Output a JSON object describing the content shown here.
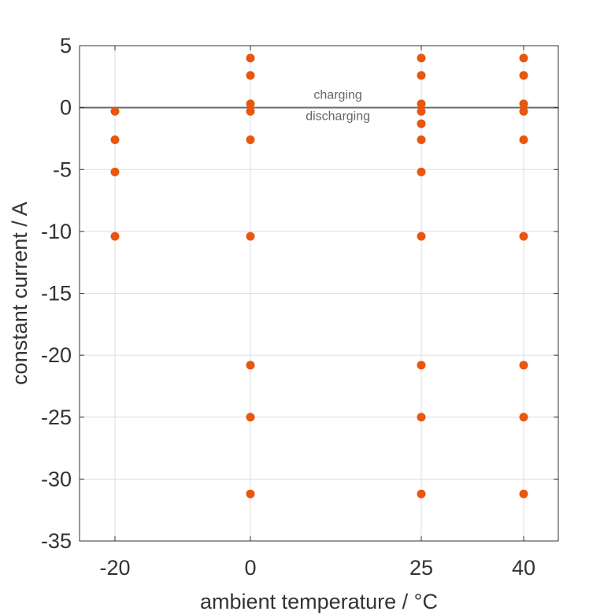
{
  "chart_data": {
    "type": "scatter",
    "xlabel": "ambient temperature / °C",
    "ylabel": "constant current / A",
    "xticks": [
      -20,
      0,
      25,
      40
    ],
    "yticks": [
      5,
      0,
      -5,
      -10,
      -15,
      -20,
      -25,
      -30,
      -35
    ],
    "xlim": [
      -25,
      44
    ],
    "ylim": [
      -35,
      5
    ],
    "grid": true,
    "marker_color": "#e8560f",
    "reference_line": {
      "y": 0,
      "color": "#6b6b6b"
    },
    "annotations": [
      {
        "text": "charging",
        "x": 12.8,
        "y": 0.7
      },
      {
        "text": "discharging",
        "x": 12.8,
        "y": -1.0
      }
    ],
    "points": [
      {
        "x": -20,
        "y": -0.3
      },
      {
        "x": -20,
        "y": -2.6
      },
      {
        "x": -20,
        "y": -5.2
      },
      {
        "x": -20,
        "y": -10.4
      },
      {
        "x": 0,
        "y": 4.0
      },
      {
        "x": 0,
        "y": 2.6
      },
      {
        "x": 0,
        "y": 0.3
      },
      {
        "x": 0,
        "y": -0.3
      },
      {
        "x": 0,
        "y": -2.6
      },
      {
        "x": 0,
        "y": -10.4
      },
      {
        "x": 0,
        "y": -20.8
      },
      {
        "x": 0,
        "y": -25.0
      },
      {
        "x": 0,
        "y": -31.2
      },
      {
        "x": 25,
        "y": 4.0
      },
      {
        "x": 25,
        "y": 2.6
      },
      {
        "x": 25,
        "y": 0.3
      },
      {
        "x": 25,
        "y": -0.3
      },
      {
        "x": 25,
        "y": -1.3
      },
      {
        "x": 25,
        "y": -2.6
      },
      {
        "x": 25,
        "y": -5.2
      },
      {
        "x": 25,
        "y": -10.4
      },
      {
        "x": 25,
        "y": -20.8
      },
      {
        "x": 25,
        "y": -25.0
      },
      {
        "x": 25,
        "y": -31.2
      },
      {
        "x": 40,
        "y": 4.0
      },
      {
        "x": 40,
        "y": 2.6
      },
      {
        "x": 40,
        "y": 0.3
      },
      {
        "x": 40,
        "y": -0.3
      },
      {
        "x": 40,
        "y": -2.6
      },
      {
        "x": 40,
        "y": -10.4
      },
      {
        "x": 40,
        "y": -20.8
      },
      {
        "x": 40,
        "y": -25.0
      },
      {
        "x": 40,
        "y": -31.2
      }
    ]
  }
}
